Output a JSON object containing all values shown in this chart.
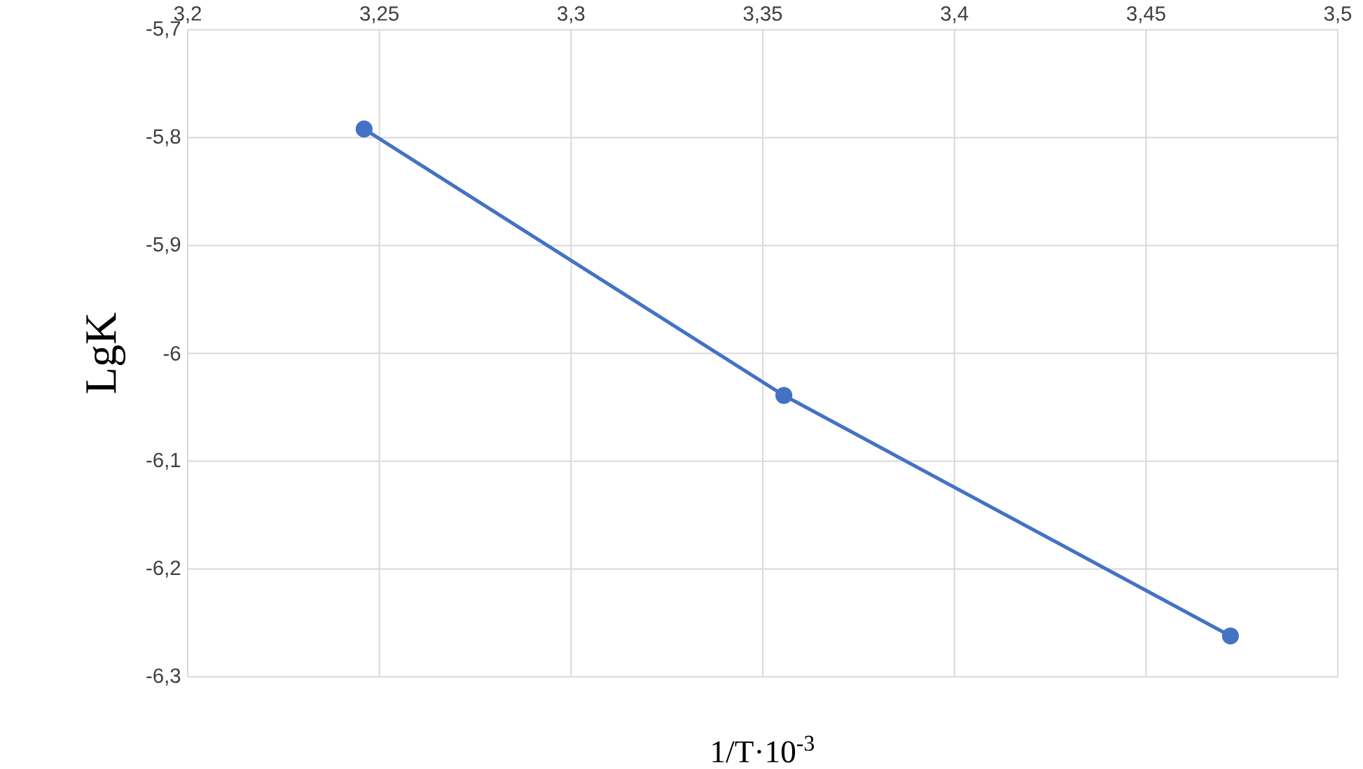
{
  "chart_data": {
    "type": "line",
    "xlabel": "1/T·10$^{-3}$",
    "ylabel": "LgK",
    "x": [
      3.246,
      3.3555,
      3.472
    ],
    "series": [
      {
        "color": "#4472c4",
        "values": [
          -5.792,
          -6.039,
          -6.262
        ]
      }
    ],
    "xlim": [
      3.2,
      3.5
    ],
    "xticks": [
      {
        "value": 3.2,
        "label": "3,2"
      },
      {
        "value": 3.25,
        "label": "3,25"
      },
      {
        "value": 3.3,
        "label": "3,3"
      },
      {
        "value": 3.35,
        "label": "3,35"
      },
      {
        "value": 3.4,
        "label": "3,4"
      },
      {
        "value": 3.45,
        "label": "3,45"
      },
      {
        "value": 3.5,
        "label": "3,5"
      }
    ],
    "ylim": [
      -6.3,
      -5.7
    ],
    "yticks": [
      {
        "value": -6.3,
        "label": "-6,3"
      },
      {
        "value": -6.2,
        "label": "-6,2"
      },
      {
        "value": -6.1,
        "label": "-6,1"
      },
      {
        "value": -6,
        "label": "-6"
      },
      {
        "value": -5.9,
        "label": "-5,9"
      },
      {
        "value": -5.8,
        "label": "-5,8"
      },
      {
        "value": -5.7,
        "label": "-5,7"
      }
    ],
    "grid": true,
    "marker": "circle",
    "line_style": "solid"
  }
}
